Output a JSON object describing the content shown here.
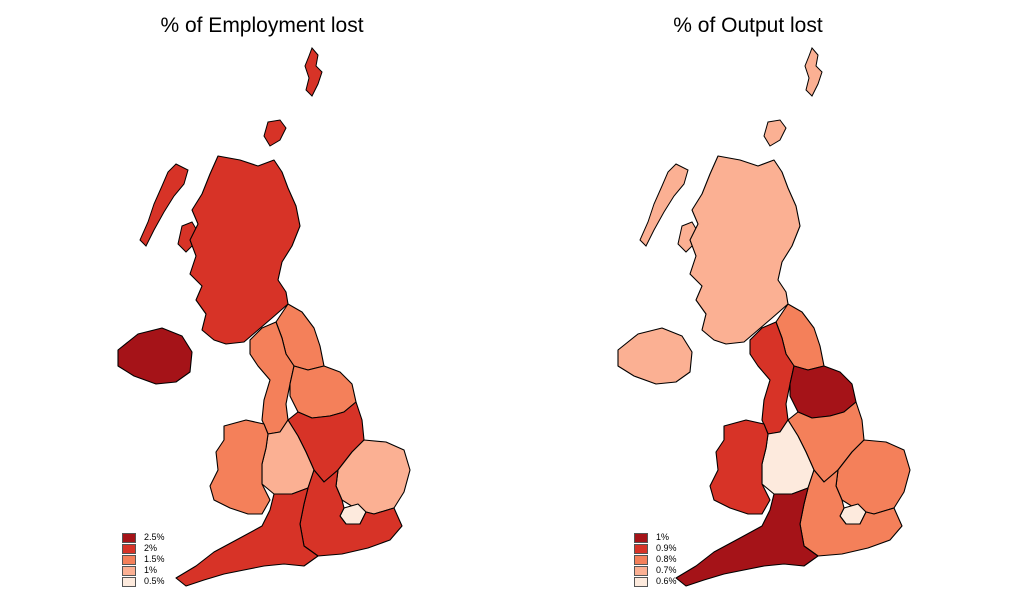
{
  "maps": [
    {
      "title": "% of Employment lost",
      "regions": {
        "scotland": "#d73327",
        "northern_ireland": "#a51318",
        "north_east": "#f4805a",
        "north_west": "#f4805a",
        "yorkshire": "#f4805a",
        "east_midlands": "#d73327",
        "west_midlands": "#fbb093",
        "wales": "#f4805a",
        "east_of_england": "#fbb093",
        "london": "#fdeadd",
        "south_east": "#d73327",
        "south_west": "#d73327"
      },
      "legend": [
        {
          "label": "2.5%",
          "color": "#a51318"
        },
        {
          "label": "2%",
          "color": "#d73327"
        },
        {
          "label": "1.5%",
          "color": "#f4805a"
        },
        {
          "label": "1%",
          "color": "#fbb093"
        },
        {
          "label": "0.5%",
          "color": "#fdeadd"
        }
      ]
    },
    {
      "title": "% of Output lost",
      "regions": {
        "scotland": "#fbb093",
        "northern_ireland": "#fbb093",
        "north_east": "#f4805a",
        "north_west": "#d73327",
        "yorkshire": "#a51318",
        "east_midlands": "#f4805a",
        "west_midlands": "#fdeadd",
        "wales": "#d73327",
        "east_of_england": "#f4805a",
        "london": "#fdeadd",
        "south_east": "#f4805a",
        "south_west": "#a51318"
      },
      "legend": [
        {
          "label": "1%",
          "color": "#a51318"
        },
        {
          "label": "0.9%",
          "color": "#d73327"
        },
        {
          "label": "0.8%",
          "color": "#f4805a"
        },
        {
          "label": "0.7%",
          "color": "#fbb093"
        },
        {
          "label": "0.6%",
          "color": "#fdeadd"
        }
      ]
    }
  ]
}
